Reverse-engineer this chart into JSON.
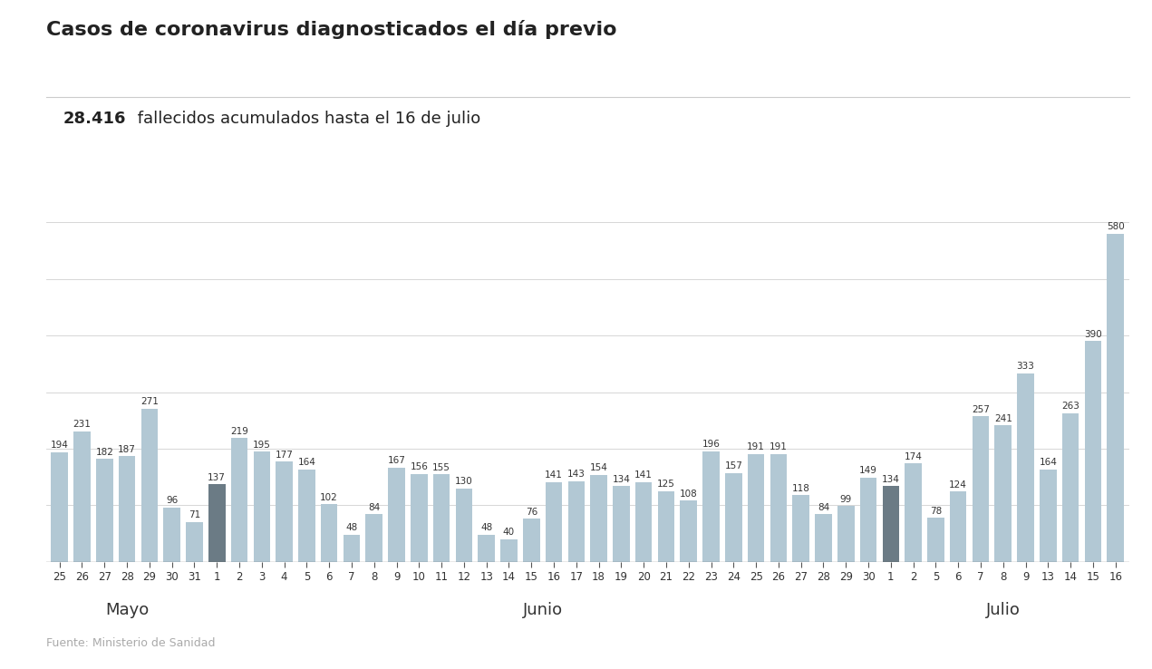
{
  "title": "Casos de coronavirus diagnosticados el día previo",
  "subtitle_bold": "28.416",
  "subtitle_rest": " fallecidos acumulados hasta el 16 de julio",
  "source": "Fuente: Ministerio de Sanidad",
  "categories": [
    "25",
    "26",
    "27",
    "28",
    "29",
    "30",
    "31",
    "1",
    "2",
    "3",
    "4",
    "5",
    "6",
    "7",
    "8",
    "9",
    "10",
    "11",
    "12",
    "13",
    "14",
    "15",
    "16",
    "17",
    "18",
    "19",
    "20",
    "21",
    "22",
    "23",
    "24",
    "25",
    "26",
    "27",
    "28",
    "29",
    "30",
    "1",
    "2",
    "5",
    "6",
    "7",
    "8",
    "9",
    "13",
    "14",
    "15",
    "16"
  ],
  "values": [
    194,
    231,
    182,
    187,
    271,
    96,
    71,
    137,
    219,
    195,
    177,
    164,
    102,
    48,
    84,
    167,
    156,
    155,
    130,
    48,
    40,
    76,
    141,
    143,
    154,
    134,
    141,
    125,
    108,
    196,
    157,
    191,
    191,
    118,
    84,
    99,
    149,
    134,
    174,
    78,
    124,
    257,
    241,
    333,
    164,
    263,
    390,
    580
  ],
  "dark_bar_indices": [
    7,
    37
  ],
  "bar_color_normal": "#b2c8d4",
  "bar_color_dark": "#6b7b85",
  "ylim": [
    0,
    650
  ],
  "grid_color": "#d0d0d0",
  "title_fontsize": 16,
  "subtitle_fontsize": 13,
  "label_fontsize": 7.5,
  "tick_fontsize": 8.5,
  "month_fontsize": 13,
  "source_fontsize": 9,
  "background_color": "#ffffff",
  "mayo_range": [
    0,
    7
  ],
  "junio_range": [
    7,
    37
  ],
  "julio_range": [
    37,
    48
  ]
}
